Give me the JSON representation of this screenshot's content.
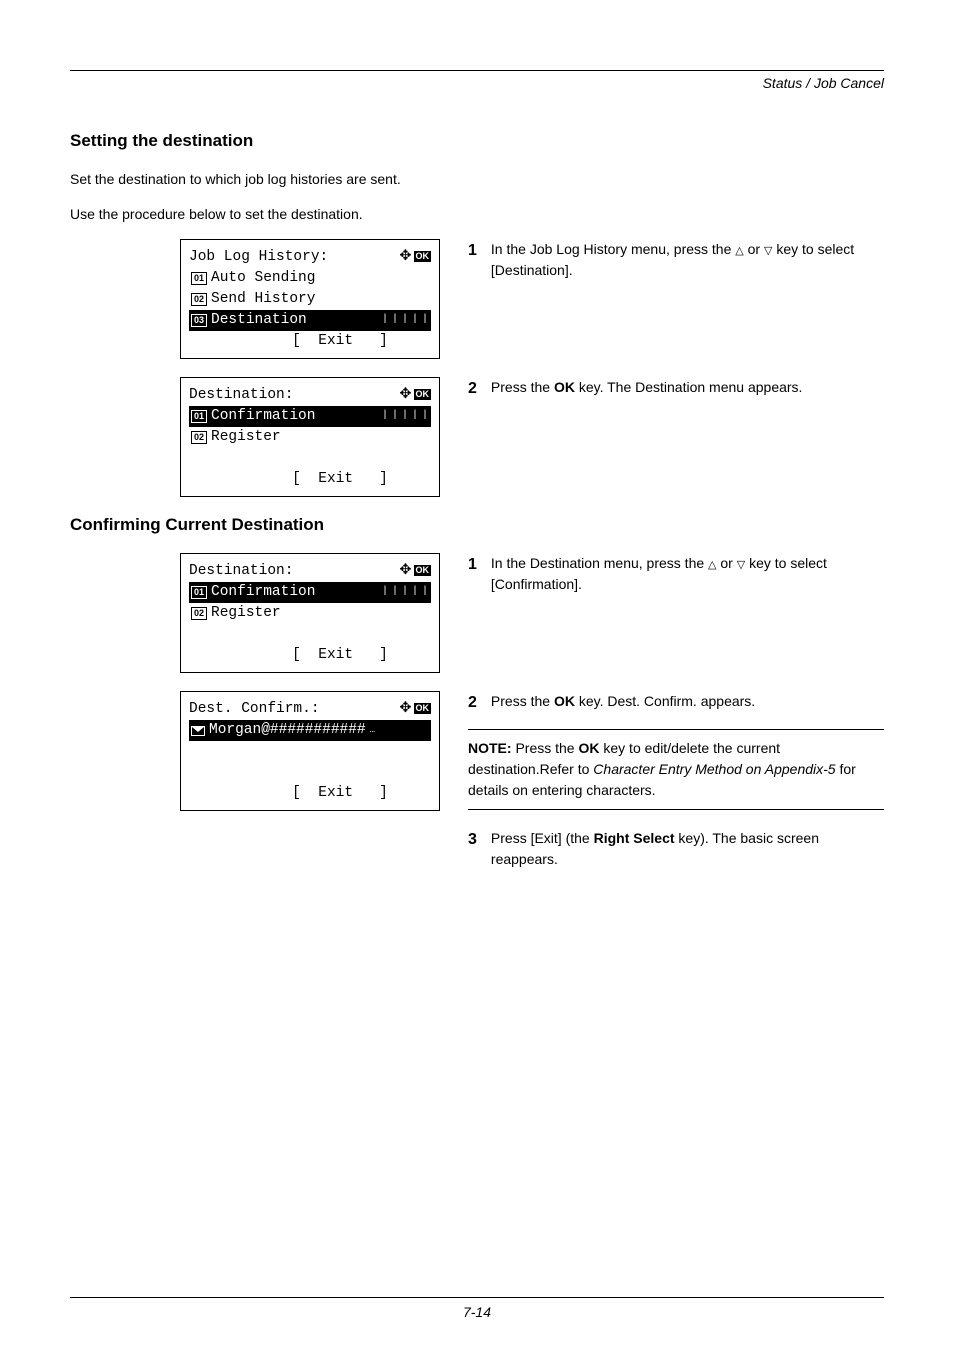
{
  "header": {
    "section_title": "Status / Job Cancel"
  },
  "section1": {
    "heading": "Setting the destination",
    "intro1": "Set the destination to which job log histories are sent.",
    "intro2": "Use the procedure below to set the destination."
  },
  "lcd1": {
    "title": "Job Log History:",
    "item1_num": "01",
    "item1": "Auto Sending",
    "item2_num": "02",
    "item2": "Send History",
    "item3_num": "03",
    "item3": "Destination",
    "exit": "[  Exit   ]"
  },
  "step1_1": {
    "num": "1",
    "text_a": "In the Job Log History menu, press the ",
    "tri_up": "△",
    "text_b": " or ",
    "tri_dn": "▽",
    "text_c": " key to select [Destination]."
  },
  "lcd2": {
    "title": "Destination:",
    "item1_num": "01",
    "item1": "Confirmation",
    "item2_num": "02",
    "item2": "Register",
    "exit": "[  Exit   ]"
  },
  "step1_2": {
    "num": "2",
    "text_a": "Press the ",
    "bold": "OK",
    "text_b": " key. The Destination menu appears."
  },
  "section2": {
    "heading": "Confirming Current Destination"
  },
  "lcd3": {
    "title": "Destination:",
    "item1_num": "01",
    "item1": "Confirmation",
    "item2_num": "02",
    "item2": "Register",
    "exit": "[  Exit   ]"
  },
  "step2_1": {
    "num": "1",
    "text_a": "In the Destination menu, press the ",
    "tri_up": "△",
    "text_b": " or ",
    "tri_dn": "▽",
    "text_c": " key to select [Confirmation]."
  },
  "lcd4": {
    "title": "Dest. Confirm.:",
    "item1": "Morgan@###########",
    "exit": "[  Exit   ]"
  },
  "step2_2": {
    "num": "2",
    "text_a": "Press the ",
    "bold": "OK",
    "text_b": " key. Dest. Confirm. appears."
  },
  "note": {
    "label": "NOTE: ",
    "text_a": "Press the ",
    "bold": "OK",
    "text_b": " key to edit/delete the current destination.Refer to ",
    "italic": "Character Entry Method on Appendix-5",
    "text_c": " for details on entering characters."
  },
  "step2_3": {
    "num": "3",
    "text_a": "Press [Exit] (the ",
    "bold": "Right Select",
    "text_b": " key). The basic screen reappears."
  },
  "footer": {
    "page": "7-14"
  },
  "ok_label": "OK"
}
